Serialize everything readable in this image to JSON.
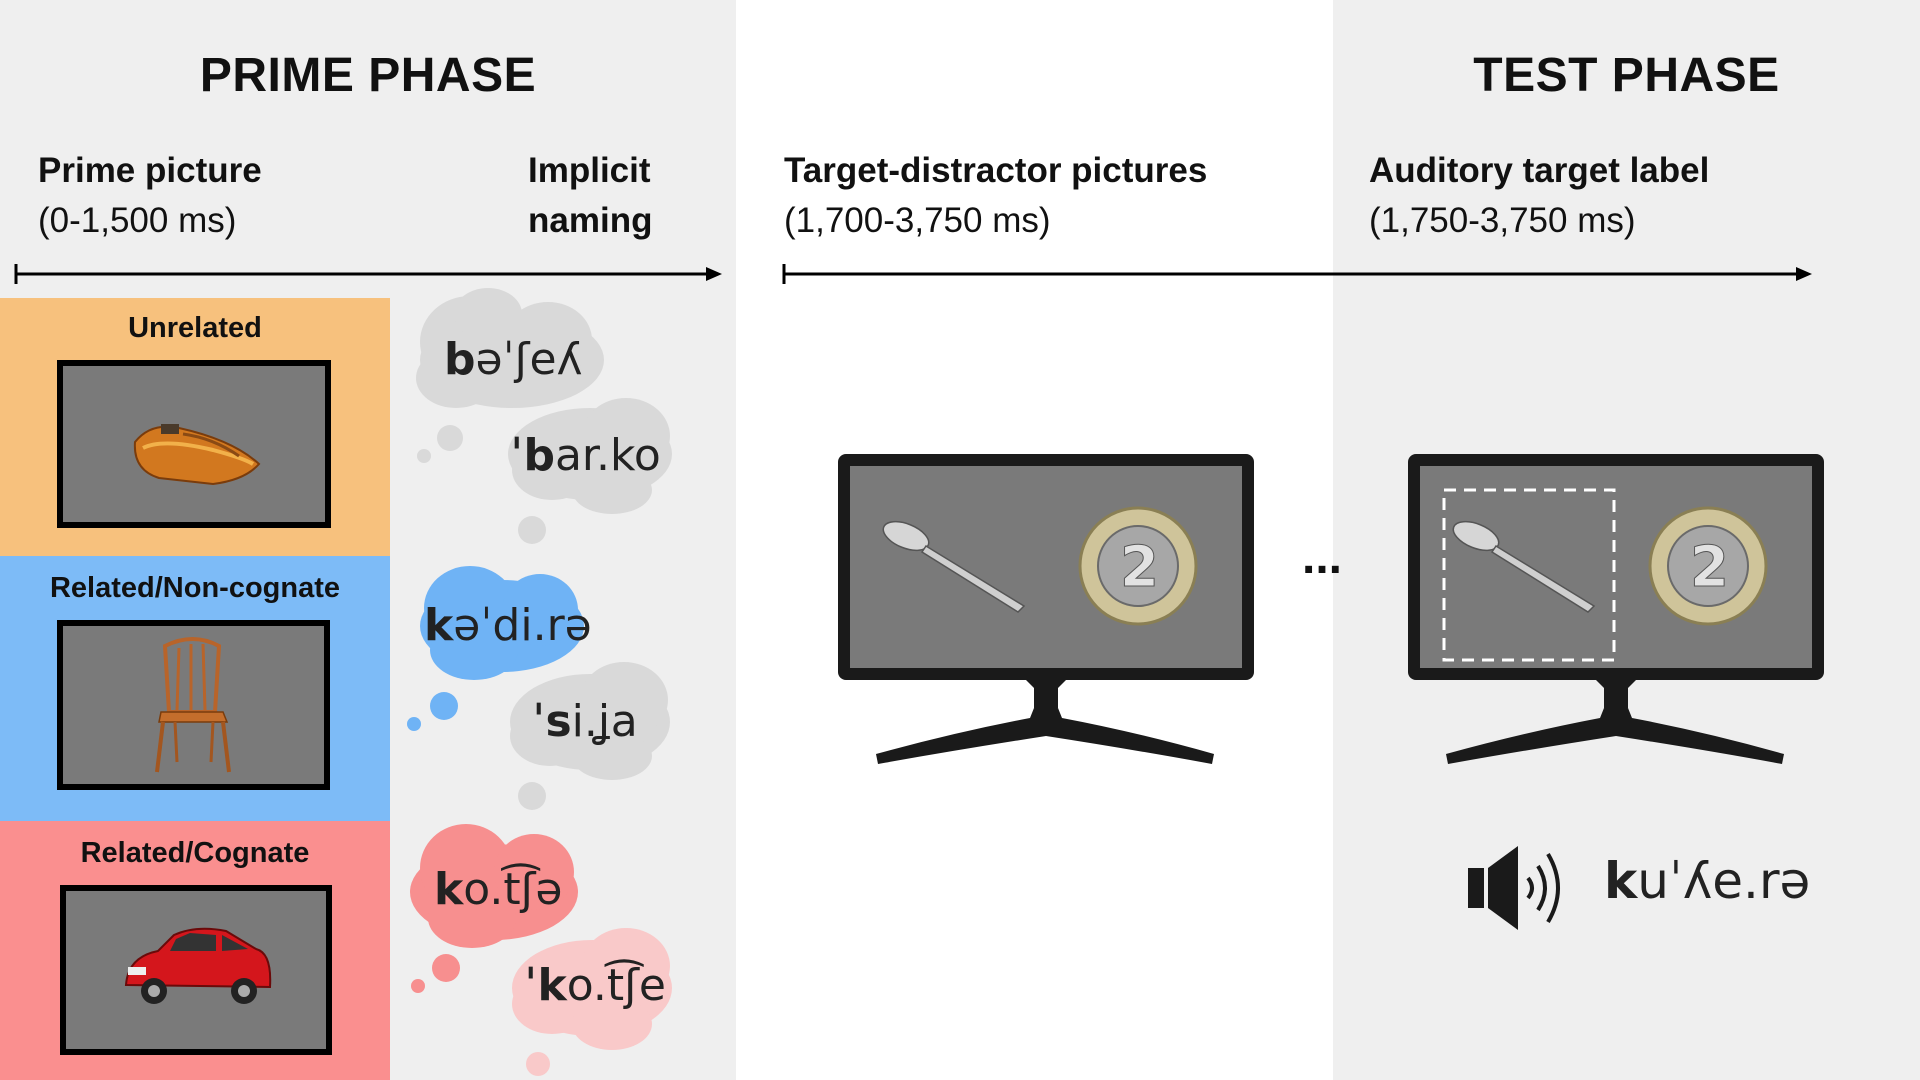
{
  "prime_phase": {
    "heading": "PRIME PHASE",
    "prime_picture": {
      "title": "Prime picture",
      "time": "(0-1,500 ms)"
    },
    "implicit_naming": {
      "line1": "Implicit",
      "line2": "naming"
    },
    "conditions": [
      {
        "title": "Unrelated",
        "picture": "boat",
        "color": "#f7c17d",
        "bubble1": {
          "bold": "b",
          "rest": "əˈʃeʎ",
          "color": "#d9d9d9"
        },
        "bubble2": {
          "bold": "ˈb",
          "rest": "ar.ko",
          "color": "#d9d9d9"
        }
      },
      {
        "title": "Related/Non-cognate",
        "picture": "chair",
        "color": "#7dbbf7",
        "bubble1": {
          "bold": "k",
          "rest": "əˈdi.rə",
          "color": "#6fb3f5"
        },
        "bubble2": {
          "bold": "ˈs",
          "rest": "i.ʝa",
          "color": "#d9d9d9"
        }
      },
      {
        "title": "Related/Cognate",
        "picture": "car",
        "color": "#fa8f8f",
        "bubble1": {
          "bold": "k",
          "rest": "o.t͡ʃə",
          "color": "#f78f8f"
        },
        "bubble2": {
          "bold": "ˈk",
          "rest": "o.t͡ʃe",
          "color": "#f9c9c9"
        }
      }
    ]
  },
  "test_phase": {
    "heading": "TEST PHASE",
    "target_distractor": {
      "title": "Target-distractor pictures",
      "time": "(1,700-3,750 ms)"
    },
    "auditory_label": {
      "title": "Auditory target label",
      "time": "(1,750-3,750 ms)"
    },
    "ellipsis": "...",
    "spoken_word": {
      "bold": "k",
      "rest": "uˈʎe.rə"
    },
    "monitor_pictures": [
      "spoon",
      "two-euro-coin"
    ]
  },
  "colors": {
    "panel_grey": "#efefef",
    "screen_grey": "#7a7a7a"
  }
}
